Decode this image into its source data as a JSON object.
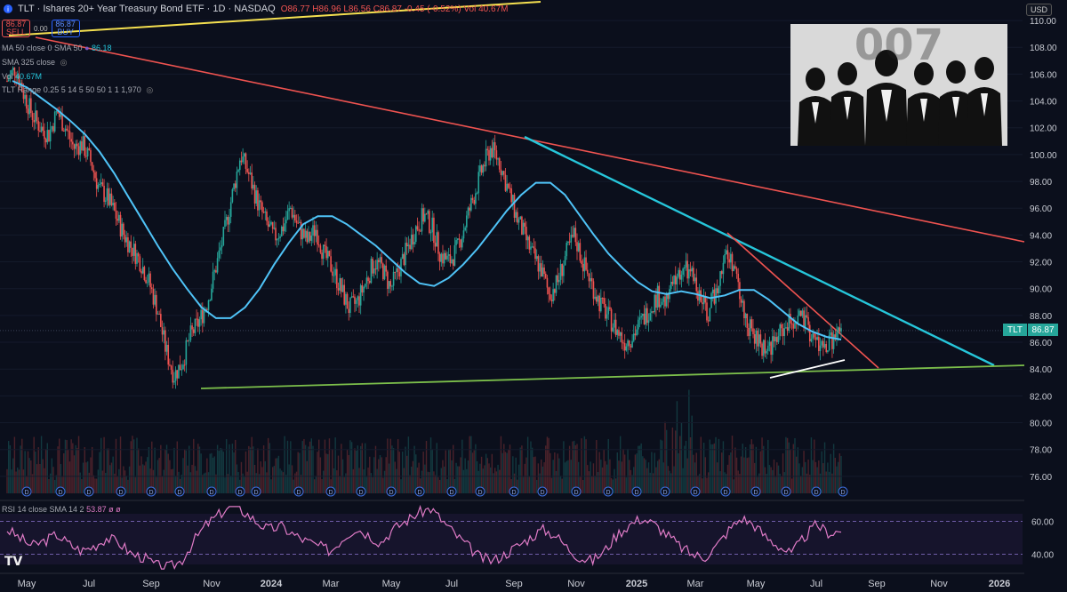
{
  "header": {
    "title": "TLT · Ishares 20+ Year Treasury Bond ETF · 1D · NASDAQ",
    "ohlc": [
      "O86.77",
      "H86.96",
      "L86.56",
      "C86.87",
      "-0.45 (-0.52%)"
    ],
    "vol": "Vol 40.67M",
    "currency": "USD"
  },
  "trade": {
    "sell_price": "86.87",
    "sell_label": "SELL",
    "spread": "0.00",
    "buy_price": "86.87",
    "buy_label": "BUY"
  },
  "indicators": [
    {
      "label": "MA 50 close 0 SMA 50",
      "value": "86.18"
    },
    {
      "label": "SMA 325 close",
      "value": ""
    },
    {
      "label": "Vol",
      "value": "40.67M"
    },
    {
      "label": "TLT Range 0.25 5 14 5 50 50 1 1 1,970",
      "value": ""
    }
  ],
  "rsi": {
    "label": "RSI 14 close SMA 14 2",
    "value": "53.87 ø ø"
  },
  "last": {
    "symbol": "TLT",
    "price": "86.87"
  },
  "colors": {
    "bg": "#0b0f1c",
    "up": "#26a69a",
    "down": "#ef5350",
    "ma": "#4fc3f7",
    "red_trend": "#ef5350",
    "cyan_trend": "#26c6da",
    "green_trend": "#7cbf4b",
    "rsi": "#e07bc7"
  },
  "chart_data": {
    "type": "candlestick",
    "x_ticks": [
      "May",
      "Jul",
      "Sep",
      "Nov",
      "2024",
      "Mar",
      "May",
      "Jul",
      "Sep",
      "Nov",
      "2025",
      "Mar",
      "May",
      "Jul",
      "Sep",
      "Nov",
      "2026"
    ],
    "y_ticks": [
      "110.00",
      "108.00",
      "106.00",
      "104.00",
      "102.00",
      "100.00",
      "98.00",
      "96.00",
      "94.00",
      "92.00",
      "90.00",
      "88.00",
      "86.00",
      "84.00",
      "82.00",
      "80.00",
      "78.00",
      "76.00"
    ],
    "ylim": [
      74.4,
      111
    ],
    "rsi_ticks": [
      "60.00",
      "40.00"
    ],
    "rsi_ylim": [
      30,
      70
    ],
    "close_series": [
      105.5,
      106.5,
      104.5,
      103.0,
      102.0,
      101.5,
      103.2,
      102.0,
      100.5,
      100.8,
      99.5,
      97.5,
      96.8,
      95.5,
      94.0,
      93.0,
      92.0,
      90.5,
      88.5,
      85.5,
      83.5,
      84.5,
      86.5,
      87.5,
      89.0,
      91.5,
      94.0,
      97.0,
      100.0,
      98.5,
      96.5,
      95.0,
      93.8,
      94.5,
      96.0,
      94.5,
      93.5,
      94.5,
      92.5,
      91.5,
      90.0,
      88.5,
      89.0,
      90.5,
      92.0,
      91.5,
      90.0,
      91.5,
      93.0,
      94.5,
      95.5,
      94.5,
      92.5,
      92.0,
      93.0,
      95.0,
      97.0,
      99.0,
      100.5,
      99.5,
      97.5,
      95.5,
      94.0,
      92.5,
      91.5,
      89.5,
      90.5,
      92.5,
      94.0,
      92.0,
      90.5,
      89.0,
      88.0,
      87.0,
      86.0,
      86.5,
      87.5,
      88.5,
      89.5,
      89.0,
      90.5,
      91.5,
      91.0,
      89.5,
      88.0,
      90.0,
      92.5,
      92.0,
      89.0,
      87.0,
      86.0,
      85.5,
      86.0,
      87.0,
      87.5,
      88.0,
      87.0,
      86.0,
      85.5,
      86.2,
      86.87
    ],
    "ma50": [
      105.5,
      105.0,
      104.2,
      103.4,
      102.5,
      101.5,
      100.2,
      98.6,
      96.8,
      95.0,
      93.2,
      91.5,
      90.0,
      88.6,
      87.8,
      87.8,
      88.6,
      90.0,
      91.8,
      93.4,
      94.8,
      95.4,
      95.4,
      94.8,
      94.0,
      93.2,
      92.2,
      91.2,
      90.4,
      90.2,
      90.8,
      91.8,
      93.0,
      94.4,
      95.8,
      97.0,
      97.9,
      97.9,
      97.0,
      95.5,
      94.0,
      92.6,
      91.5,
      90.5,
      89.8,
      89.6,
      89.8,
      89.6,
      89.3,
      89.5,
      89.9,
      89.9,
      89.2,
      88.3,
      87.4,
      86.8,
      86.4,
      86.2
    ],
    "rsi": [
      55,
      50,
      45,
      48,
      52,
      46,
      42,
      45,
      50,
      47,
      40,
      38,
      33,
      32,
      36,
      48,
      58,
      64,
      70,
      66,
      60,
      55,
      57,
      52,
      48,
      45,
      42,
      50,
      56,
      52,
      47,
      55,
      60,
      65,
      68,
      60,
      52,
      45,
      38,
      36,
      40,
      45,
      50,
      55,
      52,
      44,
      38,
      36,
      42,
      52,
      58,
      62,
      58,
      52,
      45,
      40,
      38,
      45,
      55,
      62,
      58,
      50,
      45,
      40,
      50,
      58,
      53,
      54
    ]
  }
}
